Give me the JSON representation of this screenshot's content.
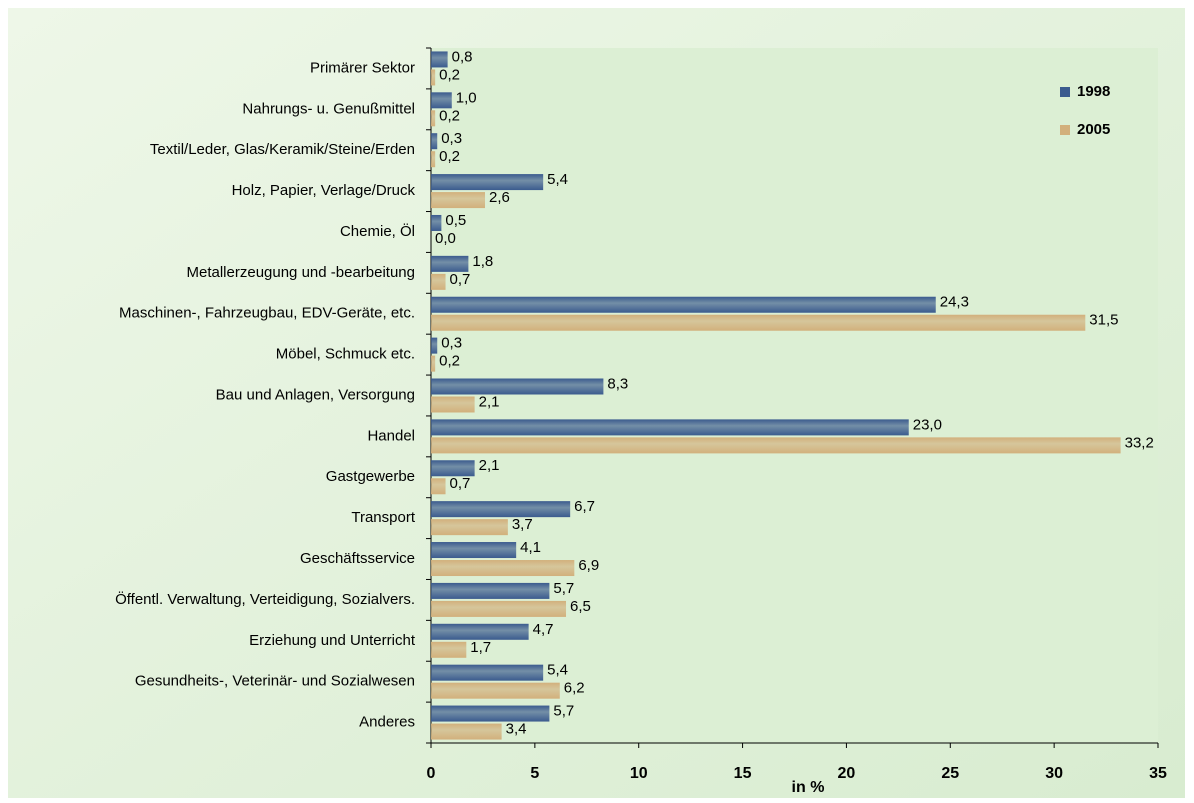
{
  "chart_data": {
    "type": "barh",
    "categories": [
      "Primärer Sektor",
      "Nahrungs- u. Genußmittel",
      "Textil/Leder, Glas/Keramik/Steine/Erden",
      "Holz, Papier, Verlage/Druck",
      "Chemie, Öl",
      "Metallerzeugung und -bearbeitung",
      "Maschinen-, Fahrzeugbau, EDV-Geräte, etc.",
      "Möbel, Schmuck etc.",
      "Bau und Anlagen, Versorgung",
      "Handel",
      "Gastgewerbe",
      "Transport",
      "Geschäftsservice",
      "Öffentl. Verwaltung, Verteidigung, Sozialvers.",
      "Erziehung und Unterricht",
      "Gesundheits-, Veterinär- und Sozialwesen",
      "Anderes"
    ],
    "series": [
      {
        "name": "1998",
        "color": "#3b5b8e",
        "values": [
          0.8,
          1.0,
          0.3,
          5.4,
          0.5,
          1.8,
          24.3,
          0.3,
          8.3,
          23.0,
          2.1,
          6.7,
          4.1,
          5.7,
          4.7,
          5.4,
          5.7
        ],
        "value_labels": [
          "0,8",
          "1,0",
          "0,3",
          "5,4",
          "0,5",
          "1,8",
          "24,3",
          "0,3",
          "8,3",
          "23,0",
          "2,1",
          "6,7",
          "4,1",
          "5,7",
          "4,7",
          "5,4",
          "5,7"
        ]
      },
      {
        "name": "2005",
        "color": "#d2b07c",
        "values": [
          0.2,
          0.2,
          0.2,
          2.6,
          0.0,
          0.7,
          31.5,
          0.2,
          2.1,
          33.2,
          0.7,
          3.7,
          6.9,
          6.5,
          1.7,
          6.2,
          3.4
        ],
        "value_labels": [
          "0,2",
          "0,2",
          "0,2",
          "2,6",
          "0,0",
          "0,7",
          "31,5",
          "0,2",
          "2,1",
          "33,2",
          "0,7",
          "3,7",
          "6,9",
          "6,5",
          "1,7",
          "6,2",
          "3,4"
        ]
      }
    ],
    "xlabel": "in %",
    "xlim": [
      0,
      35
    ],
    "xticks": [
      0,
      5,
      10,
      15,
      20,
      25,
      30,
      35
    ],
    "legend": "upper right"
  }
}
